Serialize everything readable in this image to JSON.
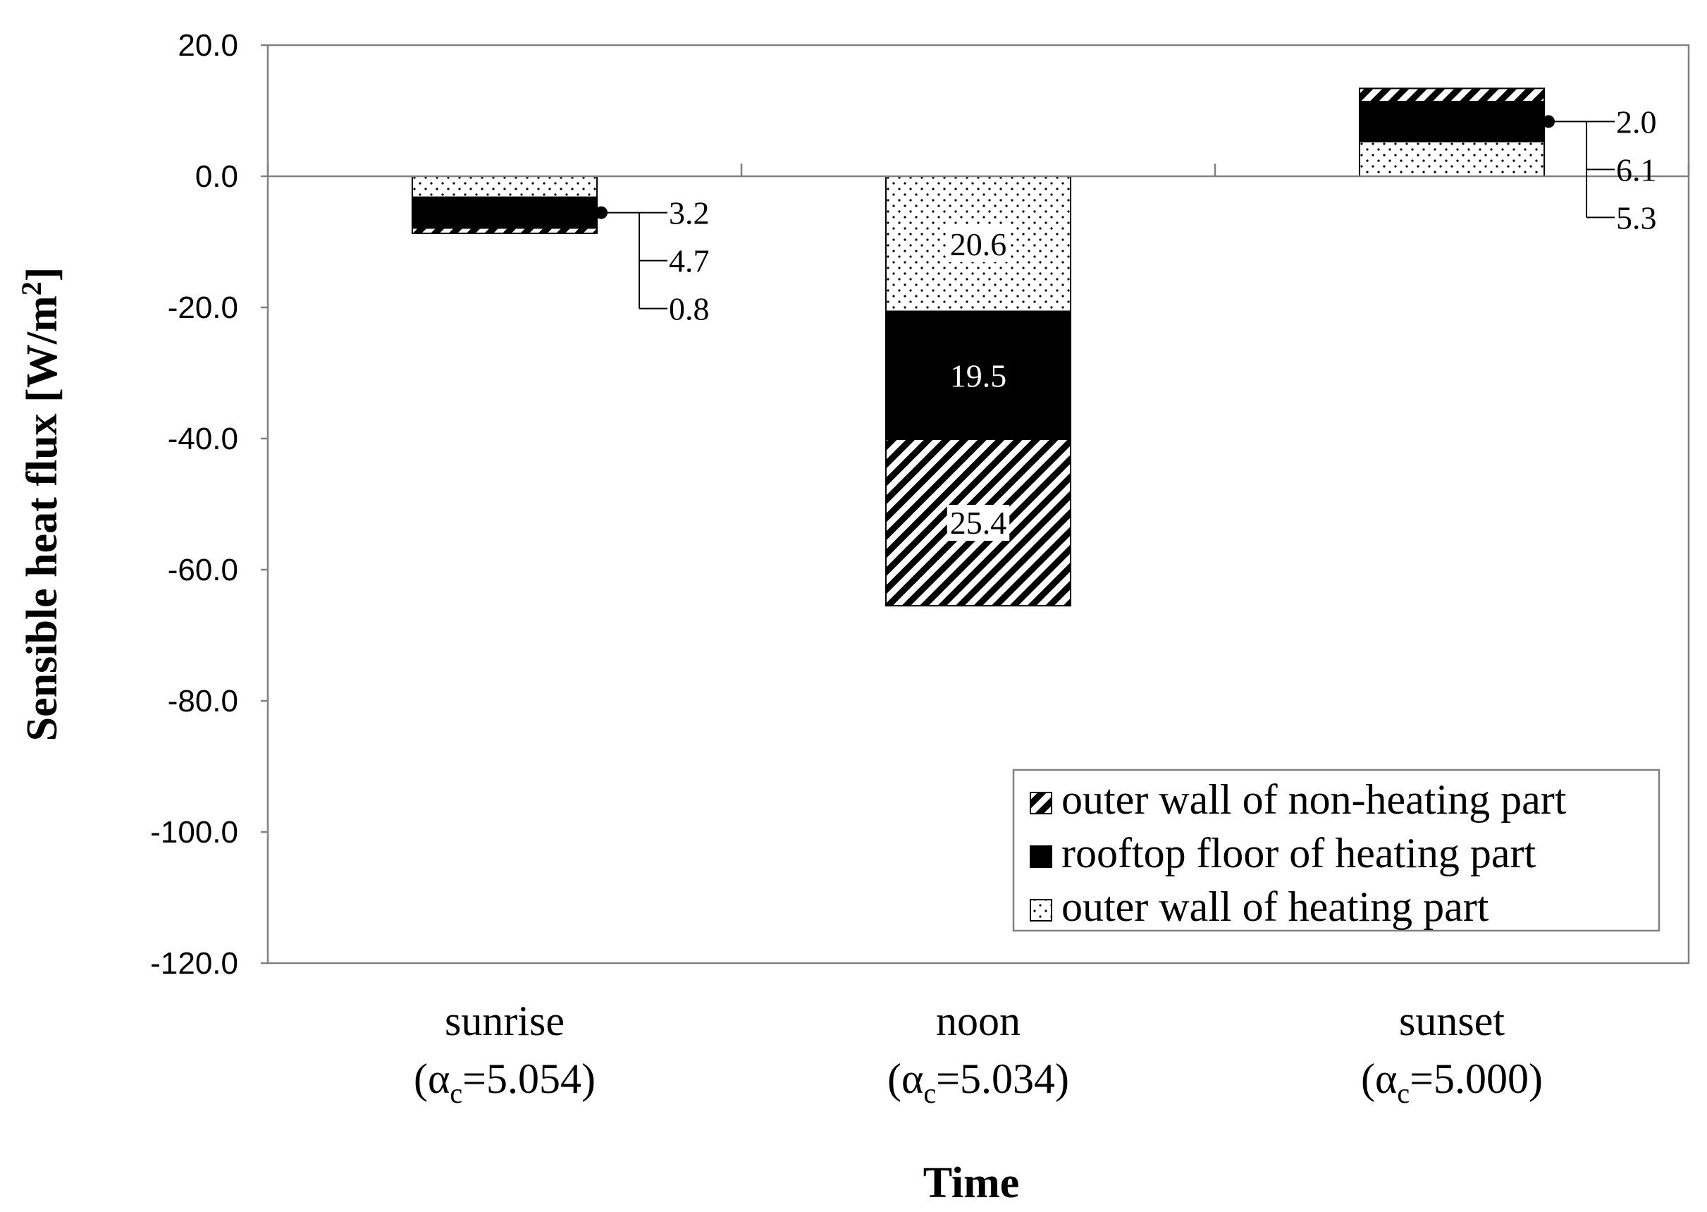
{
  "chart_data": {
    "type": "bar",
    "stacked": true,
    "xlabel": "Time",
    "ylabel": "Sensible heat flux [W/m",
    "ylabel_sup": "2",
    "ylabel_end": "]",
    "ylim": [
      -120,
      20
    ],
    "yticks": [
      20,
      0,
      -20,
      -40,
      -60,
      -80,
      -100,
      -120
    ],
    "ytick_labels": [
      "20.0",
      "0.0",
      "-20.0",
      "-40.0",
      "-60.0",
      "-80.0",
      "-100.0",
      "-120.0"
    ],
    "categories": [
      {
        "name": "sunrise",
        "alpha_prefix": "(α",
        "alpha_sub": "c",
        "alpha_value": "=5.054)"
      },
      {
        "name": "noon",
        "alpha_prefix": "(α",
        "alpha_sub": "c",
        "alpha_value": "=5.034)"
      },
      {
        "name": "sunset",
        "alpha_prefix": "(α",
        "alpha_sub": "c",
        "alpha_value": "=5.000)"
      }
    ],
    "series": [
      {
        "name": "outer wall of heating part",
        "pattern": "dots",
        "values": [
          -3.2,
          -20.6,
          5.3
        ],
        "labels": [
          "3.2",
          "20.6",
          "5.3"
        ]
      },
      {
        "name": "rooftop floor of heating part",
        "pattern": "solid",
        "values": [
          -4.7,
          -19.5,
          6.1
        ],
        "labels": [
          "4.7",
          "19.5",
          "6.1"
        ]
      },
      {
        "name": "outer wall of non-heating part",
        "pattern": "hatch",
        "values": [
          -0.8,
          -25.4,
          2.0
        ],
        "labels": [
          "0.8",
          "25.4",
          "2.0"
        ]
      }
    ],
    "legend_order": [
      "outer wall of non-heating part",
      "rooftop floor of heating part",
      "outer wall of heating part"
    ],
    "legend_position": "bottom-right",
    "colors": {
      "solid": "#000000",
      "hatch": "#000000",
      "dots": "#000000",
      "axis": "#808080"
    }
  }
}
